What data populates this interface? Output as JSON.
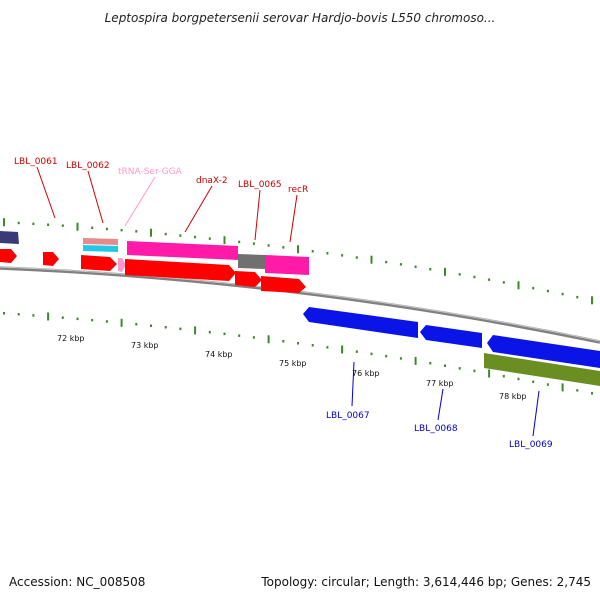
{
  "title": "Leptospira borgpetersenii serovar Hardjo-bovis L550 chromoso...",
  "footer": {
    "accession": "Accession: NC_008508",
    "summary": "Topology: circular; Length: 3,614,446 bp; Genes: 2,745"
  },
  "colors": {
    "backbone": "#808080",
    "ticks": "#3a8a2a",
    "red_gene": "#ff0000",
    "magenta_gene": "#ff1aa8",
    "gray_gene": "#707070",
    "blue_gene": "#0a14e6",
    "olive_gene": "#6b8e23",
    "navy_gene": "#3a3a78",
    "trna_label": "#ff99cc",
    "forward_label": "#cc0000",
    "reverse_label": "#0000cc"
  },
  "scale_labels": [
    "72 kbp",
    "73 kbp",
    "74 kbp",
    "75 kbp",
    "76 kbp",
    "77 kbp",
    "78 kbp"
  ],
  "forward_labels": [
    {
      "id": "lbl-0061",
      "text": "LBL_0061"
    },
    {
      "id": "lbl-0062",
      "text": "LBL_0062"
    },
    {
      "id": "trna-ser",
      "text": "tRNA-Ser-GGA"
    },
    {
      "id": "dnax-2",
      "text": "dnaX-2"
    },
    {
      "id": "lbl-0065",
      "text": "LBL_0065"
    },
    {
      "id": "recr",
      "text": "recR"
    }
  ],
  "reverse_labels": [
    {
      "id": "lbl-0067",
      "text": "LBL_0067"
    },
    {
      "id": "lbl-0068",
      "text": "LBL_0068"
    },
    {
      "id": "lbl-0069",
      "text": "LBL_0069"
    }
  ]
}
